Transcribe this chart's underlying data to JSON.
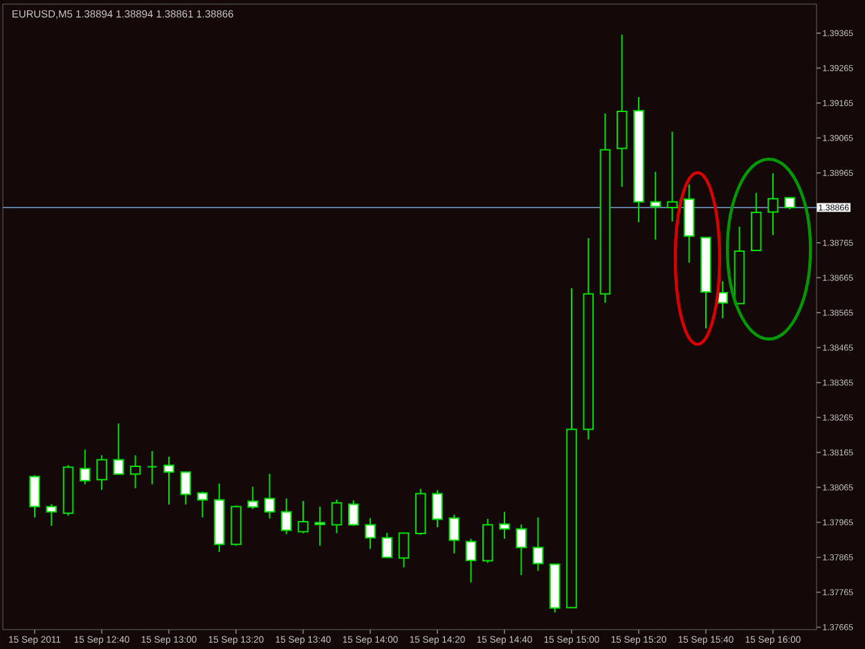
{
  "chart_data": {
    "type": "candlestick",
    "title": "EURUSD,M5  1.38894 1.38894 1.38861 1.38866",
    "categories": [
      "15 Sep 2011",
      null,
      null,
      null,
      "15 Sep 12:40",
      null,
      null,
      null,
      "15 Sep 13:00",
      null,
      null,
      null,
      "15 Sep 13:20",
      null,
      null,
      null,
      "15 Sep 13:40",
      null,
      null,
      null,
      "15 Sep 14:00",
      null,
      null,
      null,
      "15 Sep 14:20",
      null,
      null,
      null,
      "15 Sep 14:40",
      null,
      null,
      null,
      "15 Sep 15:00",
      null,
      null,
      null,
      "15 Sep 15:20",
      null,
      null,
      null,
      "15 Sep 15:40",
      null,
      null,
      null,
      "15 Sep 16:00",
      null
    ],
    "ohlc": [
      [
        1.38096,
        1.381,
        1.37979,
        1.3801
      ],
      [
        1.3801,
        1.38017,
        1.37955,
        1.37995
      ],
      [
        1.37991,
        1.38129,
        1.37984,
        1.38123
      ],
      [
        1.38119,
        1.38173,
        1.38074,
        1.38084
      ],
      [
        1.38087,
        1.38157,
        1.38058,
        1.38144
      ],
      [
        1.38144,
        1.38248,
        1.38103,
        1.38103
      ],
      [
        1.38103,
        1.38157,
        1.38063,
        1.38125
      ],
      [
        1.38124,
        1.38169,
        1.38074,
        1.38124
      ],
      [
        1.38128,
        1.38153,
        1.38016,
        1.38109
      ],
      [
        1.38109,
        1.38109,
        1.38016,
        1.38045
      ],
      [
        1.38049,
        1.38053,
        1.37979,
        1.38029
      ],
      [
        1.38029,
        1.38076,
        1.3788,
        1.37902
      ],
      [
        1.37902,
        1.38013,
        1.37898,
        1.3801
      ],
      [
        1.38025,
        1.38067,
        1.38003,
        1.38009
      ],
      [
        1.38033,
        1.38104,
        1.37976,
        1.37995
      ],
      [
        1.37995,
        1.38033,
        1.37931,
        1.37942
      ],
      [
        1.37938,
        1.38026,
        1.37934,
        1.37967
      ],
      [
        1.37964,
        1.3801,
        1.37898,
        1.37959
      ],
      [
        1.37958,
        1.3803,
        1.37934,
        1.38021
      ],
      [
        1.38017,
        1.38028,
        1.37955,
        1.37958
      ],
      [
        1.37958,
        1.37977,
        1.37889,
        1.37921
      ],
      [
        1.37921,
        1.37935,
        1.37863,
        1.37865
      ],
      [
        1.37863,
        1.37934,
        1.37836,
        1.37934
      ],
      [
        1.37933,
        1.38061,
        1.37929,
        1.38047
      ],
      [
        1.38047,
        1.38057,
        1.37951,
        1.37974
      ],
      [
        1.37977,
        1.37987,
        1.37876,
        1.37914
      ],
      [
        1.3791,
        1.37918,
        1.37793,
        1.37856
      ],
      [
        1.37855,
        1.37975,
        1.37849,
        1.37958
      ],
      [
        1.3796,
        1.37995,
        1.37918,
        1.37946
      ],
      [
        1.37946,
        1.37959,
        1.37814,
        1.37893
      ],
      [
        1.37893,
        1.37979,
        1.37826,
        1.37847
      ],
      [
        1.37845,
        1.37845,
        1.37707,
        1.3772
      ],
      [
        1.37721,
        1.38635,
        1.37721,
        1.38231
      ],
      [
        1.38231,
        1.38778,
        1.38202,
        1.38619
      ],
      [
        1.38619,
        1.39135,
        1.38593,
        1.39031
      ],
      [
        1.39035,
        1.39361,
        1.38925,
        1.39141
      ],
      [
        1.39143,
        1.39182,
        1.38824,
        1.38882
      ],
      [
        1.38882,
        1.38968,
        1.38774,
        1.38869
      ],
      [
        1.38866,
        1.39083,
        1.38826,
        1.38882
      ],
      [
        1.3889,
        1.38932,
        1.38708,
        1.38784
      ],
      [
        1.3878,
        1.3878,
        1.3852,
        1.38624
      ],
      [
        1.38622,
        1.38655,
        1.38549,
        1.38593
      ],
      [
        1.38591,
        1.38811,
        1.38589,
        1.38741
      ],
      [
        1.38743,
        1.38908,
        1.38743,
        1.38852
      ],
      [
        1.38853,
        1.38964,
        1.38787,
        1.38891
      ],
      [
        1.38894,
        1.38894,
        1.38861,
        1.38866
      ]
    ],
    "color": "#00e000",
    "ylim": [
      1.37658,
      1.39448
    ],
    "yticks": [
      1.39365,
      1.39265,
      1.39165,
      1.39065,
      1.38965,
      1.38765,
      1.38665,
      1.38565,
      1.38465,
      1.38365,
      1.38265,
      1.38165,
      1.38065,
      1.37965,
      1.37865,
      1.37765,
      1.37665
    ],
    "ref_lines": [
      {
        "axis": "y",
        "value": 1.38866,
        "label": "1.38866",
        "color": "#6a8cb4"
      }
    ]
  }
}
